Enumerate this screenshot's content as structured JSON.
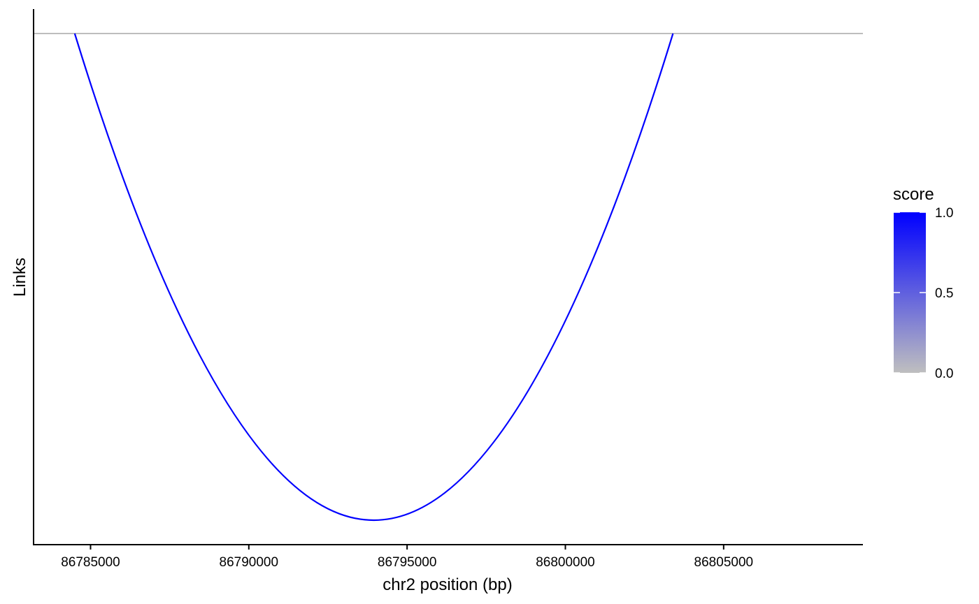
{
  "chart_data": {
    "type": "line",
    "title": "",
    "xlabel": "chr2 position (bp)",
    "ylabel": "Links",
    "x_ticks": [
      86785000,
      86790000,
      86795000,
      86800000,
      86805000
    ],
    "x_tick_labels": [
      "86785000",
      "86790000",
      "86795000",
      "86800000",
      "86805000"
    ],
    "xlim": [
      86783200,
      86809400
    ],
    "baseline_color": "#bdbdbd",
    "links": [
      {
        "start": 86784500,
        "end": 86803400,
        "score": 1.0,
        "color": "#0000ff"
      }
    ],
    "legend": {
      "title": "score",
      "position": "right",
      "ticks": [
        1.0,
        0.5,
        0.0
      ],
      "tick_labels": [
        "1.0",
        "0.5",
        "0.0"
      ],
      "color_low": "#bfbfbf",
      "color_high": "#0000ff"
    },
    "grid": false
  }
}
